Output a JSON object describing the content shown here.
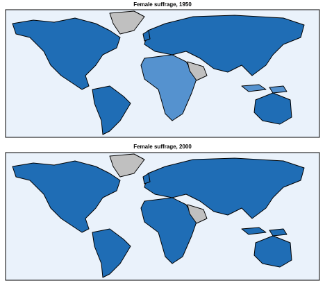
{
  "maps": [
    {
      "title": "Female suffrage, 1950"
    },
    {
      "title": "Female suffrage, 2000"
    }
  ]
}
